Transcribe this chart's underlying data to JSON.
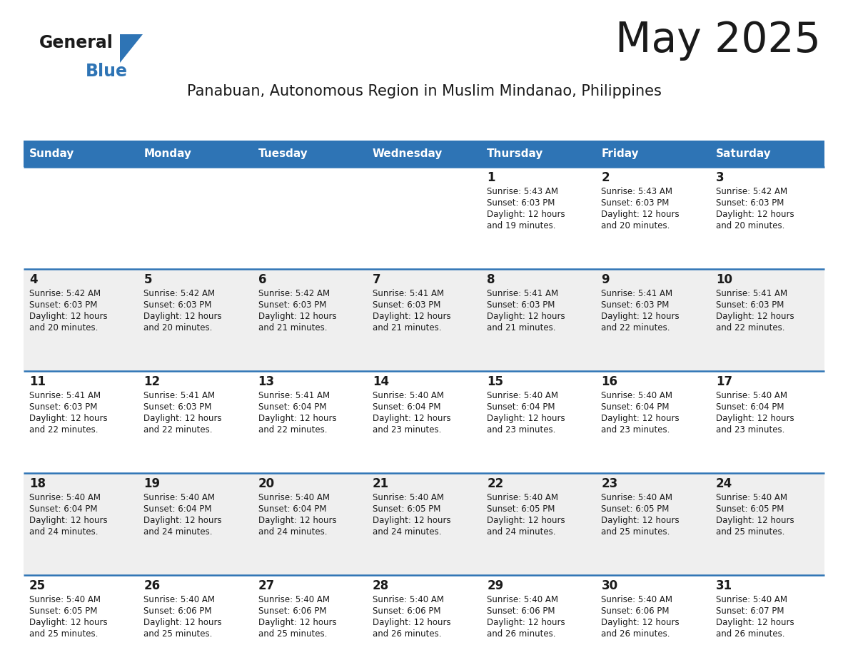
{
  "title": "May 2025",
  "subtitle": "Panabuan, Autonomous Region in Muslim Mindanao, Philippines",
  "header_color": "#2E74B5",
  "header_text_color": "#FFFFFF",
  "day_names": [
    "Sunday",
    "Monday",
    "Tuesday",
    "Wednesday",
    "Thursday",
    "Friday",
    "Saturday"
  ],
  "bg_color": "#FFFFFF",
  "cell_bg_odd": "#FFFFFF",
  "cell_bg_even": "#EFEFEF",
  "row_line_color": "#2E74B5",
  "logo_text_color": "#1a1a1a",
  "logo_blue_color": "#2E74B5",
  "text_color": "#1a1a1a",
  "days": [
    {
      "day": 1,
      "col": 4,
      "row": 0,
      "sunrise": "5:43 AM",
      "sunset": "6:03 PM",
      "daylight": "12 hours and 19 minutes."
    },
    {
      "day": 2,
      "col": 5,
      "row": 0,
      "sunrise": "5:43 AM",
      "sunset": "6:03 PM",
      "daylight": "12 hours and 20 minutes."
    },
    {
      "day": 3,
      "col": 6,
      "row": 0,
      "sunrise": "5:42 AM",
      "sunset": "6:03 PM",
      "daylight": "12 hours and 20 minutes."
    },
    {
      "day": 4,
      "col": 0,
      "row": 1,
      "sunrise": "5:42 AM",
      "sunset": "6:03 PM",
      "daylight": "12 hours and 20 minutes."
    },
    {
      "day": 5,
      "col": 1,
      "row": 1,
      "sunrise": "5:42 AM",
      "sunset": "6:03 PM",
      "daylight": "12 hours and 20 minutes."
    },
    {
      "day": 6,
      "col": 2,
      "row": 1,
      "sunrise": "5:42 AM",
      "sunset": "6:03 PM",
      "daylight": "12 hours and 21 minutes."
    },
    {
      "day": 7,
      "col": 3,
      "row": 1,
      "sunrise": "5:41 AM",
      "sunset": "6:03 PM",
      "daylight": "12 hours and 21 minutes."
    },
    {
      "day": 8,
      "col": 4,
      "row": 1,
      "sunrise": "5:41 AM",
      "sunset": "6:03 PM",
      "daylight": "12 hours and 21 minutes."
    },
    {
      "day": 9,
      "col": 5,
      "row": 1,
      "sunrise": "5:41 AM",
      "sunset": "6:03 PM",
      "daylight": "12 hours and 22 minutes."
    },
    {
      "day": 10,
      "col": 6,
      "row": 1,
      "sunrise": "5:41 AM",
      "sunset": "6:03 PM",
      "daylight": "12 hours and 22 minutes."
    },
    {
      "day": 11,
      "col": 0,
      "row": 2,
      "sunrise": "5:41 AM",
      "sunset": "6:03 PM",
      "daylight": "12 hours and 22 minutes."
    },
    {
      "day": 12,
      "col": 1,
      "row": 2,
      "sunrise": "5:41 AM",
      "sunset": "6:03 PM",
      "daylight": "12 hours and 22 minutes."
    },
    {
      "day": 13,
      "col": 2,
      "row": 2,
      "sunrise": "5:41 AM",
      "sunset": "6:04 PM",
      "daylight": "12 hours and 22 minutes."
    },
    {
      "day": 14,
      "col": 3,
      "row": 2,
      "sunrise": "5:40 AM",
      "sunset": "6:04 PM",
      "daylight": "12 hours and 23 minutes."
    },
    {
      "day": 15,
      "col": 4,
      "row": 2,
      "sunrise": "5:40 AM",
      "sunset": "6:04 PM",
      "daylight": "12 hours and 23 minutes."
    },
    {
      "day": 16,
      "col": 5,
      "row": 2,
      "sunrise": "5:40 AM",
      "sunset": "6:04 PM",
      "daylight": "12 hours and 23 minutes."
    },
    {
      "day": 17,
      "col": 6,
      "row": 2,
      "sunrise": "5:40 AM",
      "sunset": "6:04 PM",
      "daylight": "12 hours and 23 minutes."
    },
    {
      "day": 18,
      "col": 0,
      "row": 3,
      "sunrise": "5:40 AM",
      "sunset": "6:04 PM",
      "daylight": "12 hours and 24 minutes."
    },
    {
      "day": 19,
      "col": 1,
      "row": 3,
      "sunrise": "5:40 AM",
      "sunset": "6:04 PM",
      "daylight": "12 hours and 24 minutes."
    },
    {
      "day": 20,
      "col": 2,
      "row": 3,
      "sunrise": "5:40 AM",
      "sunset": "6:04 PM",
      "daylight": "12 hours and 24 minutes."
    },
    {
      "day": 21,
      "col": 3,
      "row": 3,
      "sunrise": "5:40 AM",
      "sunset": "6:05 PM",
      "daylight": "12 hours and 24 minutes."
    },
    {
      "day": 22,
      "col": 4,
      "row": 3,
      "sunrise": "5:40 AM",
      "sunset": "6:05 PM",
      "daylight": "12 hours and 24 minutes."
    },
    {
      "day": 23,
      "col": 5,
      "row": 3,
      "sunrise": "5:40 AM",
      "sunset": "6:05 PM",
      "daylight": "12 hours and 25 minutes."
    },
    {
      "day": 24,
      "col": 6,
      "row": 3,
      "sunrise": "5:40 AM",
      "sunset": "6:05 PM",
      "daylight": "12 hours and 25 minutes."
    },
    {
      "day": 25,
      "col": 0,
      "row": 4,
      "sunrise": "5:40 AM",
      "sunset": "6:05 PM",
      "daylight": "12 hours and 25 minutes."
    },
    {
      "day": 26,
      "col": 1,
      "row": 4,
      "sunrise": "5:40 AM",
      "sunset": "6:06 PM",
      "daylight": "12 hours and 25 minutes."
    },
    {
      "day": 27,
      "col": 2,
      "row": 4,
      "sunrise": "5:40 AM",
      "sunset": "6:06 PM",
      "daylight": "12 hours and 25 minutes."
    },
    {
      "day": 28,
      "col": 3,
      "row": 4,
      "sunrise": "5:40 AM",
      "sunset": "6:06 PM",
      "daylight": "12 hours and 26 minutes."
    },
    {
      "day": 29,
      "col": 4,
      "row": 4,
      "sunrise": "5:40 AM",
      "sunset": "6:06 PM",
      "daylight": "12 hours and 26 minutes."
    },
    {
      "day": 30,
      "col": 5,
      "row": 4,
      "sunrise": "5:40 AM",
      "sunset": "6:06 PM",
      "daylight": "12 hours and 26 minutes."
    },
    {
      "day": 31,
      "col": 6,
      "row": 4,
      "sunrise": "5:40 AM",
      "sunset": "6:07 PM",
      "daylight": "12 hours and 26 minutes."
    }
  ]
}
